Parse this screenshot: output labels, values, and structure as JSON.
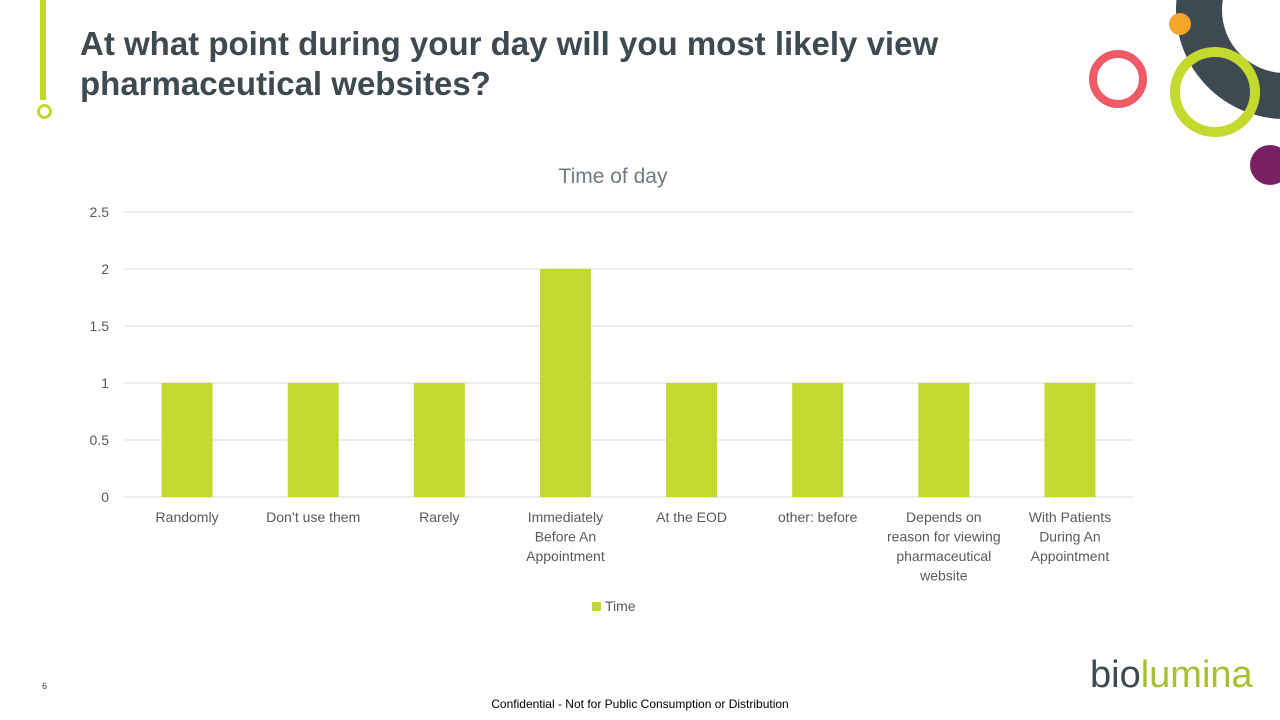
{
  "slide": {
    "title": "At what point during your day will you most likely view pharmaceutical websites?",
    "page_number": "6",
    "footer_note": "Confidential - Not for Public Consumption or Distribution",
    "logo_part1": "bio",
    "logo_part2": "lumina"
  },
  "colors": {
    "accent": "#c4d92e",
    "title_text": "#3d4a52",
    "deco_coral": "#ef5a67",
    "deco_orange": "#f7a42b",
    "deco_purple": "#7a2166",
    "deco_dark": "#3d4a52"
  },
  "chart_data": {
    "type": "bar",
    "title": "Time of day",
    "categories": [
      [
        "Randomly"
      ],
      [
        "Don’t use them"
      ],
      [
        "Rarely"
      ],
      [
        "Immediately",
        "Before An",
        "Appointment"
      ],
      [
        "At the EOD"
      ],
      [
        "other: before"
      ],
      [
        "Depends on",
        "reason for viewing",
        "pharmaceutical",
        "website"
      ],
      [
        "With Patients",
        "During An",
        "Appointment"
      ]
    ],
    "series": [
      {
        "name": "Time",
        "values": [
          1,
          1,
          1,
          2,
          1,
          1,
          1,
          1
        ]
      }
    ],
    "ylim": [
      0,
      2.5
    ],
    "yticks": [
      "0",
      "0.5",
      "1",
      "1.5",
      "2",
      "2.5"
    ],
    "grid": true,
    "legend_position": "bottom"
  }
}
